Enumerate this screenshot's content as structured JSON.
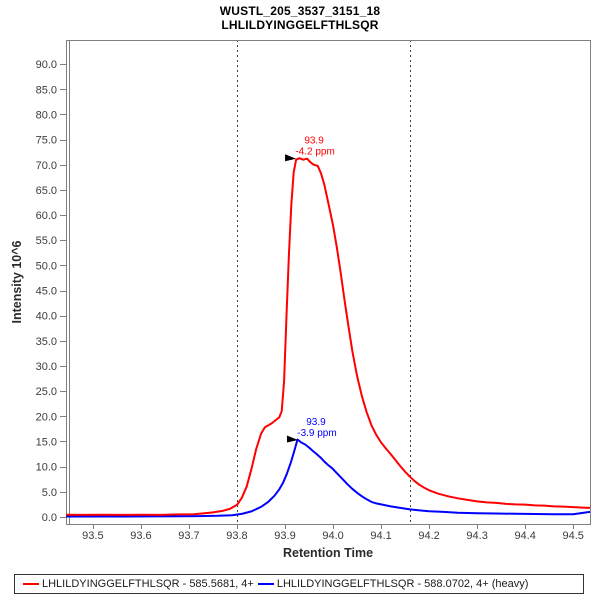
{
  "chart_data": {
    "type": "line",
    "title": "WUSTL_205_3537_3151_18",
    "subtitle": "LHLILDYINGGELFTHLSQR",
    "xlabel": "Retention Time",
    "ylabel": "Intensity 10^6",
    "xlim": [
      93.444,
      94.535
    ],
    "ylim": [
      -1.4,
      94.8
    ],
    "grid": false,
    "legend_position": "bottom",
    "x_ticks": [
      93.5,
      93.6,
      93.7,
      93.8,
      93.9,
      94.0,
      94.1,
      94.2,
      94.3,
      94.4,
      94.5
    ],
    "x_tick_labels": [
      "93.5",
      "93.6",
      "93.7",
      "93.8",
      "93.9",
      "94.0",
      "94.1",
      "94.2",
      "94.3",
      "94.4",
      "94.5"
    ],
    "y_ticks": [
      0,
      5,
      10,
      15,
      20,
      25,
      30,
      35,
      40,
      45,
      50,
      55,
      60,
      65,
      70,
      75,
      80,
      85,
      90
    ],
    "y_tick_labels": [
      "0.0",
      "5.0",
      "10.0",
      "15.0",
      "20.0",
      "25.0",
      "30.0",
      "35.0",
      "40.0",
      "45.0",
      "50.0",
      "55.0",
      "60.0",
      "65.0",
      "70.0",
      "75.0",
      "80.0",
      "85.0",
      "90.0"
    ],
    "peak_boundaries": [
      93.8,
      94.16
    ],
    "series": [
      {
        "name": "LHLILDYINGGELFTHLSQR - 588.0702, 4+ (heavy)",
        "color": "#0000ff",
        "points": [
          [
            93.444,
            0.1
          ],
          [
            93.5,
            0.1
          ],
          [
            93.56,
            0.1
          ],
          [
            93.62,
            0.12
          ],
          [
            93.68,
            0.15
          ],
          [
            93.72,
            0.18
          ],
          [
            93.76,
            0.22
          ],
          [
            93.79,
            0.35
          ],
          [
            93.81,
            0.6
          ],
          [
            93.83,
            1.1
          ],
          [
            93.85,
            2.0
          ],
          [
            93.865,
            3.0
          ],
          [
            93.878,
            4.2
          ],
          [
            93.888,
            5.5
          ],
          [
            93.896,
            6.8
          ],
          [
            93.904,
            8.6
          ],
          [
            93.912,
            10.8
          ],
          [
            93.919,
            13.0
          ],
          [
            93.926,
            15.4
          ],
          [
            93.934,
            14.8
          ],
          [
            93.942,
            14.4
          ],
          [
            93.95,
            13.8
          ],
          [
            93.958,
            13.1
          ],
          [
            93.966,
            12.5
          ],
          [
            93.974,
            11.8
          ],
          [
            93.982,
            11.0
          ],
          [
            93.99,
            10.3
          ],
          [
            93.998,
            9.7
          ],
          [
            94.006,
            8.9
          ],
          [
            94.014,
            8.1
          ],
          [
            94.022,
            7.3
          ],
          [
            94.03,
            6.5
          ],
          [
            94.04,
            5.6
          ],
          [
            94.05,
            4.8
          ],
          [
            94.06,
            4.1
          ],
          [
            94.07,
            3.5
          ],
          [
            94.08,
            3.0
          ],
          [
            94.09,
            2.7
          ],
          [
            94.1,
            2.5
          ],
          [
            94.12,
            2.1
          ],
          [
            94.14,
            1.8
          ],
          [
            94.16,
            1.5
          ],
          [
            94.18,
            1.3
          ],
          [
            94.2,
            1.15
          ],
          [
            94.23,
            1.0
          ],
          [
            94.26,
            0.85
          ],
          [
            94.3,
            0.75
          ],
          [
            94.34,
            0.68
          ],
          [
            94.38,
            0.62
          ],
          [
            94.42,
            0.58
          ],
          [
            94.46,
            0.55
          ],
          [
            94.5,
            0.55
          ],
          [
            94.52,
            0.8
          ],
          [
            94.535,
            1.0
          ]
        ]
      },
      {
        "name": "LHLILDYINGGELFTHLSQR - 585.5681, 4+",
        "color": "#ff0000",
        "points": [
          [
            93.444,
            0.45
          ],
          [
            93.48,
            0.4
          ],
          [
            93.52,
            0.45
          ],
          [
            93.56,
            0.4
          ],
          [
            93.6,
            0.45
          ],
          [
            93.64,
            0.4
          ],
          [
            93.68,
            0.5
          ],
          [
            93.71,
            0.55
          ],
          [
            93.73,
            0.7
          ],
          [
            93.75,
            0.9
          ],
          [
            93.77,
            1.2
          ],
          [
            93.785,
            1.6
          ],
          [
            93.8,
            2.4
          ],
          [
            93.81,
            3.8
          ],
          [
            93.82,
            6.0
          ],
          [
            93.83,
            9.5
          ],
          [
            93.84,
            13.5
          ],
          [
            93.85,
            16.5
          ],
          [
            93.858,
            17.8
          ],
          [
            93.865,
            18.2
          ],
          [
            93.872,
            18.6
          ],
          [
            93.88,
            19.2
          ],
          [
            93.888,
            19.8
          ],
          [
            93.893,
            21.0
          ],
          [
            93.898,
            27.0
          ],
          [
            93.903,
            40.0
          ],
          [
            93.908,
            52.0
          ],
          [
            93.913,
            62.0
          ],
          [
            93.918,
            68.5
          ],
          [
            93.923,
            71.0
          ],
          [
            93.93,
            71.3
          ],
          [
            93.938,
            71.0
          ],
          [
            93.946,
            71.2
          ],
          [
            93.953,
            70.5
          ],
          [
            93.96,
            70.0
          ],
          [
            93.968,
            69.8
          ],
          [
            93.975,
            68.3
          ],
          [
            93.982,
            66.0
          ],
          [
            93.99,
            62.5
          ],
          [
            94.0,
            58.0
          ],
          [
            94.008,
            53.5
          ],
          [
            94.016,
            48.5
          ],
          [
            94.024,
            43.0
          ],
          [
            94.032,
            38.0
          ],
          [
            94.04,
            33.0
          ],
          [
            94.05,
            28.0
          ],
          [
            94.06,
            24.0
          ],
          [
            94.07,
            20.8
          ],
          [
            94.08,
            18.2
          ],
          [
            94.09,
            16.3
          ],
          [
            94.1,
            14.8
          ],
          [
            94.11,
            13.6
          ],
          [
            94.12,
            12.5
          ],
          [
            94.13,
            11.3
          ],
          [
            94.14,
            10.1
          ],
          [
            94.15,
            9.0
          ],
          [
            94.16,
            8.0
          ],
          [
            94.17,
            7.1
          ],
          [
            94.18,
            6.4
          ],
          [
            94.19,
            5.8
          ],
          [
            94.2,
            5.3
          ],
          [
            94.22,
            4.6
          ],
          [
            94.24,
            4.1
          ],
          [
            94.26,
            3.7
          ],
          [
            94.28,
            3.4
          ],
          [
            94.3,
            3.1
          ],
          [
            94.32,
            2.9
          ],
          [
            94.34,
            2.8
          ],
          [
            94.36,
            2.6
          ],
          [
            94.38,
            2.5
          ],
          [
            94.4,
            2.45
          ],
          [
            94.42,
            2.3
          ],
          [
            94.44,
            2.25
          ],
          [
            94.46,
            2.1
          ],
          [
            94.48,
            2.05
          ],
          [
            94.5,
            1.95
          ],
          [
            94.52,
            1.85
          ],
          [
            94.535,
            1.8
          ]
        ]
      }
    ],
    "annotations": [
      {
        "rt_label": "93.9",
        "ppm_label": "-4.2 ppm",
        "x": 93.923,
        "y": 71.2,
        "color": "#ff0000"
      },
      {
        "rt_label": "93.9",
        "ppm_label": "-3.9 ppm",
        "x": 93.927,
        "y": 15.3,
        "color": "#0000ff"
      }
    ]
  },
  "legend": {
    "items": [
      {
        "label": "LHLILDYINGGELFTHLSQR - 585.5681, 4+",
        "color": "#ff0000"
      },
      {
        "label": "LHLILDYINGGELFTHLSQR - 588.0702, 4+ (heavy)",
        "color": "#0000ff"
      }
    ]
  },
  "colors": {
    "frame": "#808080",
    "tick_label": "#3c3c3c",
    "boundary_line": "#404040",
    "annotation_arrow": "#000000",
    "background": "#ffffff"
  }
}
